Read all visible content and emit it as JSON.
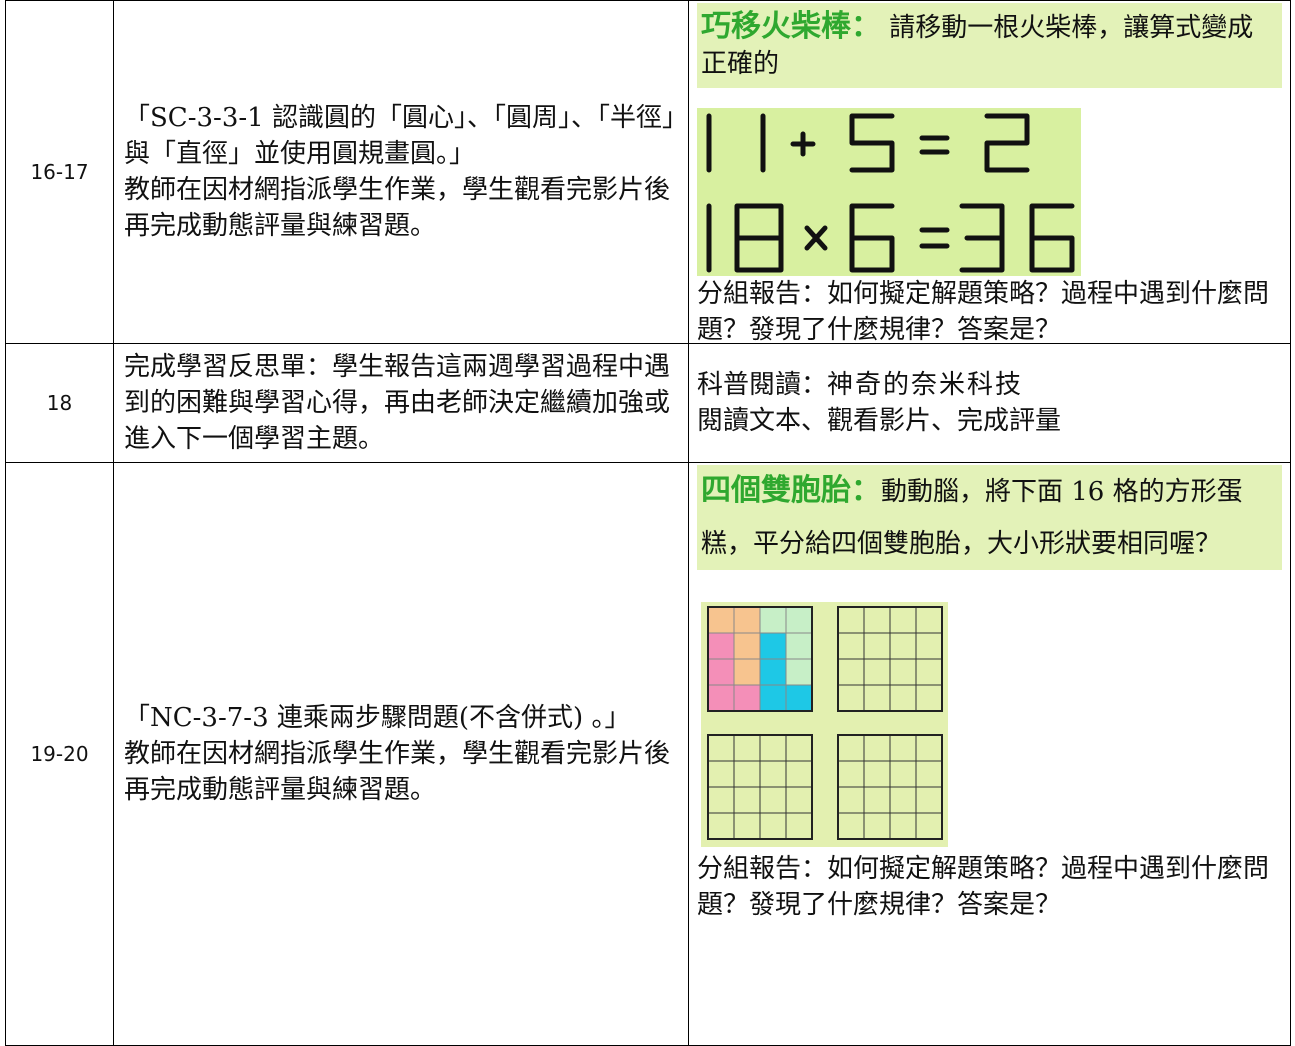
{
  "table": {
    "rows": [
      {
        "period": "16-17",
        "content": [
          "「SC-3-3-1 認識圓的「圓心」、「圓周」、「半徑」與「直徑」並使用圓規畫圓。」",
          "教師在因材網指派學生作業，學生觀看完影片後再完成動態評量與練習題。"
        ],
        "activity": {
          "title": "巧移火柴棒：",
          "intro": "請移動一根火柴棒，讓算式變成正確的",
          "report": "分組報告：如何擬定解題策略？過程中遇到什麼問題？發現了什麼規律？答案是？"
        }
      },
      {
        "period": "18",
        "content": [
          "完成學習反思單：學生報告這兩週學習過程中遇到的困難與學習心得，再由老師決定繼續加強或進入下一個學習主題。"
        ],
        "activity": {
          "title": "科普閱讀：",
          "topic": "神奇的奈米科技",
          "tasks": "閱讀文本、觀看影片、完成評量"
        }
      },
      {
        "period": "19-20",
        "content": [
          "「NC-3-7-3 連乘兩步驟問題(不含併式) 。」",
          "教師在因材網指派學生作業，學生觀看完影片後再完成動態評量與練習題。"
        ],
        "activity": {
          "title": "四個雙胞胎：",
          "intro": "動動腦，將下面 16 格的方形蛋糕，平分給四個雙胞胎，大小形狀要相同喔？",
          "report": "分組報告：如何擬定解題策略？過程中遇到什麼問題？發現了什麼規律？答案是？"
        }
      }
    ]
  }
}
